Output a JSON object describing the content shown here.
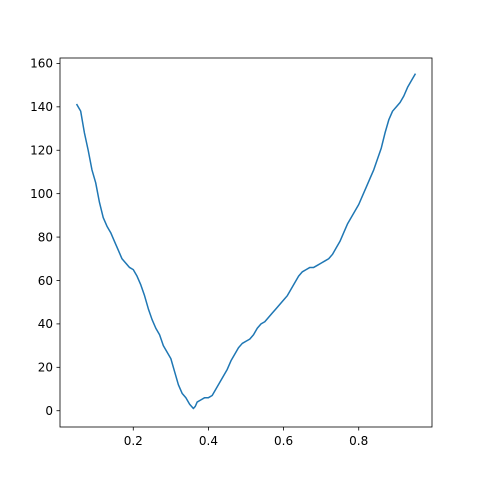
{
  "chart_data": {
    "type": "line",
    "title": "",
    "xlabel": "",
    "ylabel": "",
    "xlim": [
      0.005,
      0.995
    ],
    "ylim": [
      -7.5,
      162.5
    ],
    "grid": false,
    "legend": "none",
    "line_color": "#1f77b4",
    "x_ticks": [
      0.2,
      0.4,
      0.6,
      0.8
    ],
    "x_tick_labels": [
      "0.2",
      "0.4",
      "0.6",
      "0.8"
    ],
    "y_ticks": [
      0,
      20,
      40,
      60,
      80,
      100,
      120,
      140,
      160
    ],
    "y_tick_labels": [
      "0",
      "20",
      "40",
      "60",
      "80",
      "100",
      "120",
      "140",
      "160"
    ],
    "series": [
      {
        "x": [
          0.05,
          0.06,
          0.07,
          0.08,
          0.09,
          0.1,
          0.11,
          0.12,
          0.13,
          0.14,
          0.15,
          0.16,
          0.17,
          0.18,
          0.19,
          0.2,
          0.21,
          0.22,
          0.23,
          0.24,
          0.25,
          0.26,
          0.27,
          0.28,
          0.29,
          0.3,
          0.31,
          0.32,
          0.33,
          0.34,
          0.35,
          0.36,
          0.365,
          0.37,
          0.38,
          0.39,
          0.4,
          0.41,
          0.42,
          0.43,
          0.44,
          0.45,
          0.46,
          0.47,
          0.48,
          0.49,
          0.5,
          0.51,
          0.52,
          0.53,
          0.54,
          0.55,
          0.56,
          0.57,
          0.58,
          0.59,
          0.6,
          0.61,
          0.62,
          0.63,
          0.64,
          0.65,
          0.66,
          0.67,
          0.68,
          0.69,
          0.7,
          0.71,
          0.72,
          0.73,
          0.74,
          0.75,
          0.76,
          0.77,
          0.78,
          0.79,
          0.8,
          0.81,
          0.82,
          0.83,
          0.84,
          0.85,
          0.86,
          0.87,
          0.88,
          0.89,
          0.9,
          0.91,
          0.92,
          0.93,
          0.94,
          0.95
        ],
        "y": [
          141,
          138,
          128,
          120,
          111,
          105,
          96,
          89,
          85,
          82,
          78,
          74,
          70,
          68,
          66,
          65,
          62,
          58,
          53,
          47,
          42,
          38,
          35,
          30,
          27,
          24,
          18,
          12,
          8,
          6,
          3,
          1,
          2,
          4,
          5,
          6,
          6,
          7,
          10,
          13,
          16,
          19,
          23,
          26,
          29,
          31,
          32,
          33,
          35,
          38,
          40,
          41,
          43,
          45,
          47,
          49,
          51,
          53,
          56,
          59,
          62,
          64,
          65,
          66,
          66,
          67,
          68,
          69,
          70,
          72,
          75,
          78,
          82,
          86,
          89,
          92,
          95,
          99,
          103,
          107,
          111,
          116,
          121,
          128,
          134,
          138,
          140,
          142,
          145,
          149,
          152,
          155
        ]
      }
    ]
  }
}
